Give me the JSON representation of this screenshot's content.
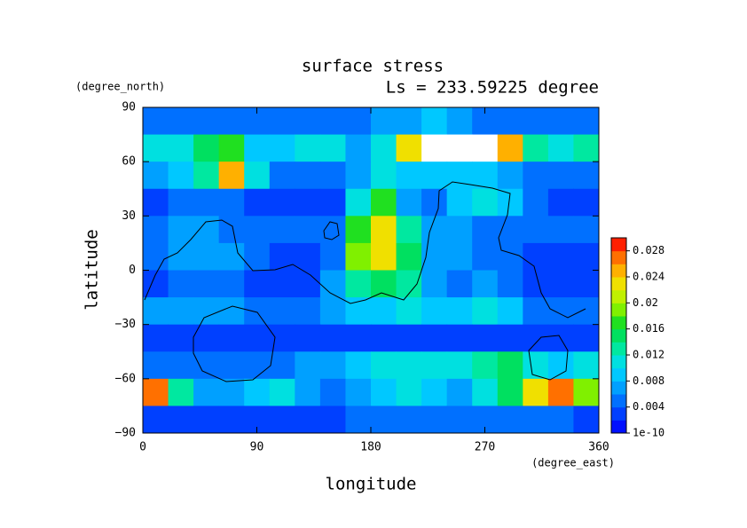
{
  "chart_data": {
    "type": "heatmap",
    "title": "surface stress",
    "subtitle": "Ls = 233.59225 degree",
    "xlabel": "longitude",
    "ylabel": "latitude",
    "xunit": "(degree_east)",
    "yunit": "(degree_north)",
    "xlim": [
      0,
      360
    ],
    "ylim": [
      -90,
      90
    ],
    "xticks": [
      0,
      90,
      180,
      270,
      360
    ],
    "yticks": [
      {
        "value": -90,
        "label": "−90"
      },
      {
        "value": -60,
        "label": "−60"
      },
      {
        "value": -30,
        "label": "−30"
      },
      0,
      30,
      60,
      90
    ],
    "x": [
      10,
      30,
      50,
      70,
      90,
      110,
      130,
      150,
      170,
      190,
      210,
      230,
      250,
      270,
      290,
      310,
      330,
      350
    ],
    "y": [
      82.5,
      67.5,
      52.5,
      37.5,
      22.5,
      7.5,
      -7.5,
      -22.5,
      -37.5,
      -52.5,
      -67.5,
      -82.5
    ],
    "z": [
      [
        0.005,
        0.004,
        0.004,
        0.005,
        0.005,
        0.005,
        0.004,
        0.004,
        0.005,
        0.006,
        0.007,
        0.008,
        0.006,
        0.005,
        0.005,
        0.005,
        0.005,
        0.005
      ],
      [
        0.01,
        0.01,
        0.014,
        0.016,
        0.008,
        0.008,
        0.01,
        0.01,
        0.006,
        0.01,
        0.022,
        0.031,
        0.034,
        0.031,
        0.024,
        0.012,
        0.01,
        0.012
      ],
      [
        0.006,
        0.008,
        0.012,
        0.024,
        0.01,
        0.005,
        0.004,
        0.004,
        0.006,
        0.01,
        0.008,
        0.008,
        0.009,
        0.008,
        0.007,
        0.005,
        0.004,
        0.004
      ],
      [
        0.003,
        0.004,
        0.004,
        0.004,
        0.003,
        0.003,
        0.003,
        0.003,
        0.01,
        0.016,
        0.006,
        0.004,
        0.008,
        0.01,
        0.008,
        0.004,
        0.003,
        0.003
      ],
      [
        0.004,
        0.006,
        0.006,
        0.005,
        0.004,
        0.004,
        0.004,
        0.005,
        0.016,
        0.022,
        0.012,
        0.006,
        0.006,
        0.005,
        0.005,
        0.004,
        0.004,
        0.004
      ],
      [
        0.004,
        0.006,
        0.007,
        0.006,
        0.004,
        0.003,
        0.003,
        0.005,
        0.018,
        0.022,
        0.014,
        0.006,
        0.006,
        0.005,
        0.004,
        0.003,
        0.003,
        0.003
      ],
      [
        0.003,
        0.004,
        0.004,
        0.004,
        0.003,
        0.002,
        0.003,
        0.006,
        0.012,
        0.014,
        0.012,
        0.006,
        0.005,
        0.006,
        0.005,
        0.003,
        0.003,
        0.002
      ],
      [
        0.006,
        0.007,
        0.006,
        0.006,
        0.004,
        0.004,
        0.005,
        0.006,
        0.008,
        0.009,
        0.01,
        0.008,
        0.008,
        0.011,
        0.008,
        0.004,
        0.004,
        0.004
      ],
      [
        0.002,
        0.003,
        0.002,
        0.002,
        0.002,
        0.003,
        0.003,
        0.002,
        0.002,
        0.003,
        0.003,
        0.003,
        0.002,
        0.002,
        0.003,
        0.003,
        0.002,
        0.002
      ],
      [
        0.004,
        0.004,
        0.004,
        0.004,
        0.005,
        0.005,
        0.006,
        0.006,
        0.008,
        0.01,
        0.01,
        0.01,
        0.01,
        0.012,
        0.014,
        0.01,
        0.008,
        0.01
      ],
      [
        0.026,
        0.012,
        0.006,
        0.006,
        0.008,
        0.01,
        0.006,
        0.005,
        0.006,
        0.008,
        0.01,
        0.008,
        0.006,
        0.01,
        0.014,
        0.022,
        0.026,
        0.018
      ],
      [
        0.003,
        0.003,
        0.003,
        0.003,
        0.003,
        0.003,
        0.003,
        0.003,
        0.004,
        0.004,
        0.004,
        0.004,
        0.004,
        0.004,
        0.004,
        0.004,
        0.004,
        0.003
      ]
    ],
    "clim": [
      0,
      0.03
    ],
    "colors": [
      "#0010ff",
      "#0040ff",
      "#0070ff",
      "#00a0ff",
      "#00c8ff",
      "#00e0e0",
      "#00e8a0",
      "#00e060",
      "#20e020",
      "#80f000",
      "#c0f000",
      "#f0e000",
      "#ffb000",
      "#ff7000",
      "#ff2000"
    ],
    "over_color": "#ffffff",
    "cticks": [
      1e-10,
      0.004,
      0.008,
      0.012,
      0.016,
      0.02,
      0.024,
      0.028
    ]
  }
}
